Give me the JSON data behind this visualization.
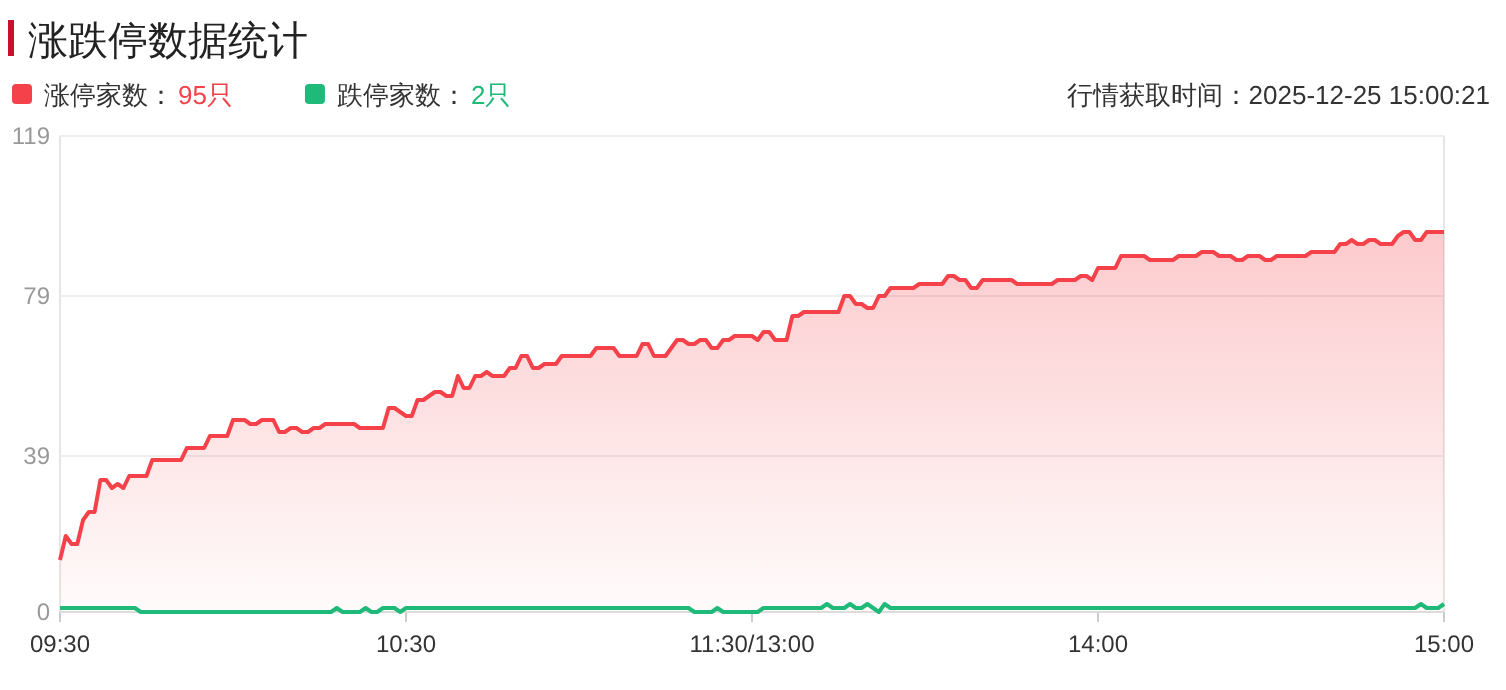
{
  "chart_data": {
    "type": "line",
    "title": "涨跌停数据统计",
    "categories": [
      "09:30",
      null,
      null,
      null,
      null,
      null,
      null,
      null,
      null,
      null,
      null,
      null,
      null,
      null,
      null,
      null,
      null,
      null,
      null,
      null,
      null,
      null,
      null,
      null,
      null,
      null,
      null,
      null,
      null,
      null,
      null,
      null,
      null,
      null,
      null,
      null,
      null,
      null,
      null,
      null,
      null,
      null,
      null,
      null,
      null,
      null,
      null,
      null,
      null,
      null,
      null,
      null,
      null,
      null,
      null,
      null,
      null,
      null,
      null,
      null,
      "10:30",
      null,
      null,
      null,
      null,
      null,
      null,
      null,
      null,
      null,
      null,
      null,
      null,
      null,
      null,
      null,
      null,
      null,
      null,
      null,
      null,
      null,
      null,
      null,
      null,
      null,
      null,
      null,
      null,
      null,
      null,
      null,
      null,
      null,
      null,
      null,
      null,
      null,
      null,
      null,
      null,
      null,
      null,
      null,
      null,
      null,
      null,
      null,
      null,
      null,
      null,
      null,
      null,
      null,
      null,
      null,
      null,
      null,
      null,
      null,
      "11:30/13:00",
      null,
      null,
      null,
      null,
      null,
      null,
      null,
      null,
      null,
      null,
      null,
      null,
      null,
      null,
      null,
      null,
      null,
      null,
      null,
      null,
      null,
      null,
      null,
      null,
      null,
      null,
      null,
      null,
      null,
      null,
      null,
      null,
      null,
      null,
      null,
      null,
      null,
      null,
      null,
      null,
      null,
      null,
      null,
      null,
      null,
      null,
      null,
      null,
      null,
      null,
      null,
      null,
      null,
      null,
      null,
      null,
      null,
      null,
      null,
      "14:00",
      null,
      null,
      null,
      null,
      null,
      null,
      null,
      null,
      null,
      null,
      null,
      null,
      null,
      null,
      null,
      null,
      null,
      null,
      null,
      null,
      null,
      null,
      null,
      null,
      null,
      null,
      null,
      null,
      null,
      null,
      null,
      null,
      null,
      null,
      null,
      null,
      null,
      null,
      null,
      null,
      null,
      null,
      null,
      null,
      null,
      null,
      null,
      null,
      null,
      null,
      null,
      null,
      null,
      null,
      null,
      null,
      null,
      null,
      null,
      "15:00"
    ],
    "ylim": [
      0,
      119
    ],
    "yticks": [
      0,
      39,
      79,
      119
    ],
    "grid": "y",
    "legend": "top left",
    "annotations": [
      "95只",
      "2只",
      "行情获取时间：2025-12-25 15:00:21"
    ],
    "series": [
      {
        "name": "涨停家数：",
        "type": "area",
        "color": "#f5424a",
        "values": [
          13,
          19,
          17,
          17,
          23,
          25,
          25,
          33,
          33,
          31,
          32,
          31,
          34,
          34,
          34,
          34,
          38,
          38,
          38,
          38,
          38,
          38,
          41,
          41,
          41,
          41,
          44,
          44,
          44,
          44,
          48,
          48,
          48,
          47,
          47,
          48,
          48,
          48,
          45,
          45,
          46,
          46,
          45,
          45,
          46,
          46,
          47,
          47,
          47,
          47,
          47,
          47,
          46,
          46,
          46,
          46,
          46,
          51,
          51,
          50,
          49,
          49,
          53,
          53,
          54,
          55,
          55,
          54,
          54,
          59,
          56,
          56,
          59,
          59,
          60,
          59,
          59,
          59,
          61,
          61,
          64,
          64,
          61,
          61,
          62,
          62,
          62,
          64,
          64,
          64,
          64,
          64,
          64,
          66,
          66,
          66,
          66,
          64,
          64,
          64,
          64,
          67,
          67,
          64,
          64,
          64,
          66,
          68,
          68,
          67,
          67,
          68,
          68,
          66,
          66,
          68,
          68,
          69,
          69,
          69,
          69,
          68,
          70,
          70,
          68,
          68,
          68,
          74,
          74,
          75,
          75,
          75,
          75,
          75,
          75,
          75,
          79,
          79,
          77,
          77,
          76,
          76,
          79,
          79,
          81,
          81,
          81,
          81,
          81,
          82,
          82,
          82,
          82,
          82,
          84,
          84,
          83,
          83,
          81,
          81,
          83,
          83,
          83,
          83,
          83,
          83,
          82,
          82,
          82,
          82,
          82,
          82,
          82,
          83,
          83,
          83,
          83,
          84,
          84,
          83,
          86,
          86,
          86,
          86,
          89,
          89,
          89,
          89,
          89,
          88,
          88,
          88,
          88,
          88,
          89,
          89,
          89,
          89,
          90,
          90,
          90,
          89,
          89,
          89,
          88,
          88,
          89,
          89,
          89,
          88,
          88,
          89,
          89,
          89,
          89,
          89,
          89,
          90,
          90,
          90,
          90,
          90,
          92,
          92,
          93,
          92,
          92,
          93,
          93,
          92,
          92,
          92,
          94,
          95,
          95,
          93,
          93,
          95,
          95,
          95,
          95
        ]
      },
      {
        "name": "跌停家数：",
        "type": "line",
        "color": "#1fb97a",
        "values": [
          1,
          1,
          1,
          1,
          1,
          1,
          1,
          1,
          1,
          1,
          1,
          1,
          1,
          1,
          0,
          0,
          0,
          0,
          0,
          0,
          0,
          0,
          0,
          0,
          0,
          0,
          0,
          0,
          0,
          0,
          0,
          0,
          0,
          0,
          0,
          0,
          0,
          0,
          0,
          0,
          0,
          0,
          0,
          0,
          0,
          0,
          0,
          0,
          1,
          0,
          0,
          0,
          0,
          1,
          0,
          0,
          1,
          1,
          1,
          0,
          1,
          1,
          1,
          1,
          1,
          1,
          1,
          1,
          1,
          1,
          1,
          1,
          1,
          1,
          1,
          1,
          1,
          1,
          1,
          1,
          1,
          1,
          1,
          1,
          1,
          1,
          1,
          1,
          1,
          1,
          1,
          1,
          1,
          1,
          1,
          1,
          1,
          1,
          1,
          1,
          1,
          1,
          1,
          1,
          1,
          1,
          1,
          1,
          1,
          1,
          0,
          0,
          0,
          0,
          1,
          0,
          0,
          0,
          0,
          0,
          0,
          0,
          1,
          1,
          1,
          1,
          1,
          1,
          1,
          1,
          1,
          1,
          1,
          2,
          1,
          1,
          1,
          2,
          1,
          1,
          2,
          1,
          0,
          2,
          1,
          1,
          1,
          1,
          1,
          1,
          1,
          1,
          1,
          1,
          1,
          1,
          1,
          1,
          1,
          1,
          1,
          1,
          1,
          1,
          1,
          1,
          1,
          1,
          1,
          1,
          1,
          1,
          1,
          1,
          1,
          1,
          1,
          1,
          1,
          1,
          1,
          1,
          1,
          1,
          1,
          1,
          1,
          1,
          1,
          1,
          1,
          1,
          1,
          1,
          1,
          1,
          1,
          1,
          1,
          1,
          1,
          1,
          1,
          1,
          1,
          1,
          1,
          1,
          1,
          1,
          1,
          1,
          1,
          1,
          1,
          1,
          1,
          1,
          1,
          1,
          1,
          1,
          1,
          1,
          1,
          1,
          1,
          1,
          1,
          1,
          1,
          1,
          1,
          1,
          1,
          1,
          2,
          1,
          1,
          1,
          2
        ]
      }
    ]
  }
}
